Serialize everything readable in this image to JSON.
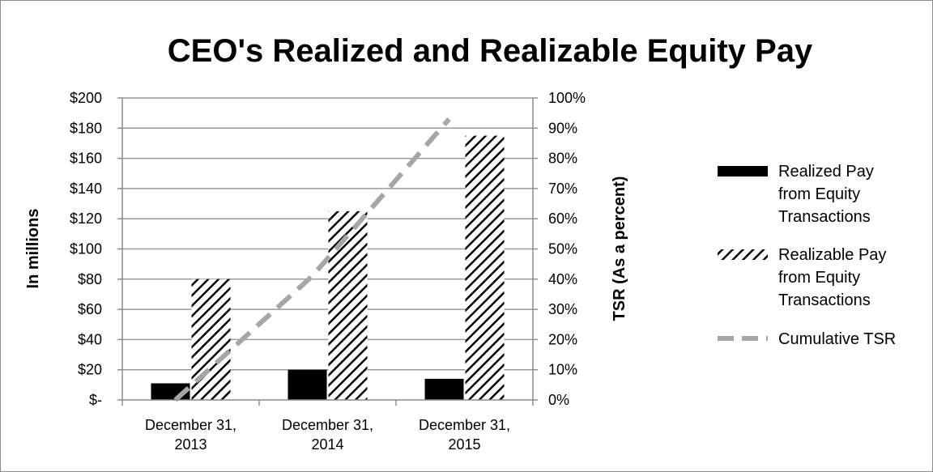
{
  "chart_data": {
    "type": "bar",
    "title": "CEO's Realized and Realizable Equity Pay",
    "categories": [
      [
        "December 31,",
        "2013"
      ],
      [
        "December 31,",
        "2014"
      ],
      [
        "December 31,",
        "2015"
      ]
    ],
    "ylabel": "In millions",
    "y2label": "TSR (As a percent)",
    "ylim": [
      0,
      200
    ],
    "y2lim": [
      0,
      100
    ],
    "yticks": [
      "$-",
      "$20",
      "$40",
      "$60",
      "$80",
      "$100",
      "$120",
      "$140",
      "$160",
      "$180",
      "$200"
    ],
    "y2ticks": [
      "0%",
      "10%",
      "20%",
      "30%",
      "40%",
      "50%",
      "60%",
      "70%",
      "80%",
      "90%",
      "100%"
    ],
    "grid": true,
    "legend_position": "right",
    "series": [
      {
        "name": [
          "Realized Pay",
          "from Equity",
          "Transactions"
        ],
        "kind": "bar",
        "axis": "left",
        "style": "solid",
        "color": "#000000",
        "values": [
          11,
          20,
          14
        ]
      },
      {
        "name": [
          "Realizable Pay",
          "from Equity",
          "Transactions"
        ],
        "kind": "bar",
        "axis": "left",
        "style": "hatched",
        "color": "#000000",
        "values": [
          80,
          125,
          175
        ]
      },
      {
        "name": [
          "Cumulative TSR"
        ],
        "kind": "line",
        "axis": "right",
        "style": "dashed",
        "color": "#a6a6a6",
        "values": [
          0,
          41,
          93
        ]
      }
    ]
  }
}
